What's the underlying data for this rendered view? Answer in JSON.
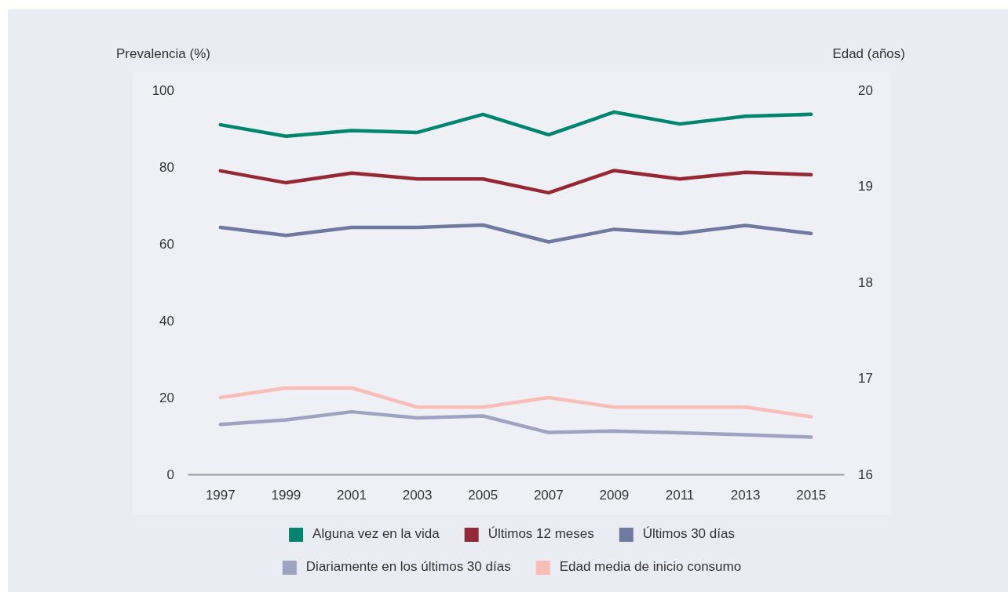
{
  "chart_data": {
    "type": "line",
    "categories": [
      "1997",
      "1999",
      "2001",
      "2003",
      "2005",
      "2007",
      "2009",
      "2011",
      "2013",
      "2015"
    ],
    "ylabel": "Prevalencia (%)",
    "y2label": "Edad (años)",
    "ylim": [
      0,
      100
    ],
    "yticks": [
      0,
      20,
      40,
      60,
      80,
      100
    ],
    "y2lim": [
      16,
      20
    ],
    "y2ticks": [
      16,
      17,
      18,
      19,
      20
    ],
    "grid": false,
    "legend": "bottom",
    "line_style": "solid",
    "series": [
      {
        "name": "Alguna vez en la vida",
        "color": "#00856e",
        "values": [
          91.0,
          88.0,
          89.5,
          89.0,
          93.7,
          88.4,
          94.3,
          91.2,
          93.2,
          93.7
        ]
      },
      {
        "name": "Últimos 12 meses",
        "color": "#952832",
        "values": [
          79.0,
          75.9,
          78.4,
          76.9,
          76.9,
          73.3,
          79.1,
          76.9,
          78.6,
          78.0
        ]
      },
      {
        "name": "Últimos 30 días",
        "color": "#6e7aa0",
        "values": [
          64.3,
          62.2,
          64.3,
          64.3,
          64.9,
          60.5,
          63.8,
          62.7,
          64.8,
          62.7
        ]
      },
      {
        "name": "Diariamente en los últimos 30 días",
        "color": "#9ea3c1",
        "values": [
          13.0,
          14.2,
          16.3,
          14.7,
          15.2,
          10.9,
          11.3,
          10.8,
          10.3,
          9.7
        ]
      },
      {
        "name": "Edad media de inicio consumo",
        "color": "#f9bdb8",
        "axis": "y2",
        "values": [
          16.8,
          16.9,
          16.9,
          16.7,
          16.7,
          16.8,
          16.7,
          16.7,
          16.7,
          16.6
        ]
      }
    ]
  }
}
